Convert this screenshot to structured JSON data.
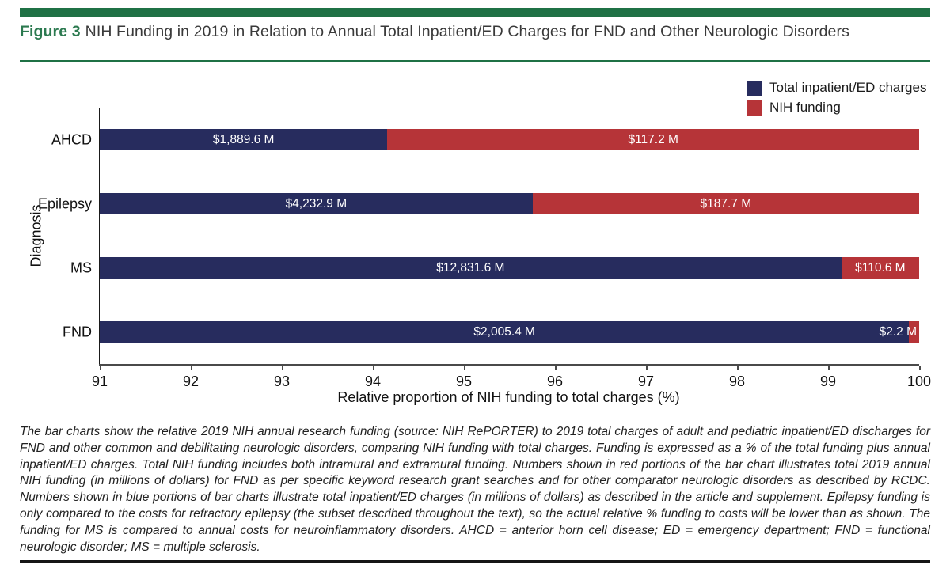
{
  "figure": {
    "label": "Figure 3",
    "title": "NIH Funding in 2019 in Relation to Annual Total Inpatient/ED Charges for FND and Other Neurologic Disorders"
  },
  "colors": {
    "charges": "#272c5e",
    "funding": "#b63438",
    "rule_green": "#1f7145",
    "figure_label_green": "#2c7a50"
  },
  "chart_data": {
    "type": "bar",
    "orientation": "horizontal",
    "stacked": true,
    "title": "",
    "ylabel": "Diagnosis",
    "xlabel": "Relative proportion of NIH funding to total charges (%)",
    "xlim": [
      91,
      100
    ],
    "x_ticks": [
      "91",
      "92",
      "93",
      "94",
      "95",
      "96",
      "97",
      "98",
      "99",
      "100"
    ],
    "categories": [
      "AHCD",
      "Epilepsy",
      "MS",
      "FND"
    ],
    "series": [
      {
        "name": "Total inpatient/ED charges",
        "color_key": "charges",
        "values_millions": [
          1889.6,
          4232.9,
          12831.6,
          2005.4
        ],
        "labels": [
          "$1,889.6 M",
          "$4,232.9 M",
          "$12,831.6 M",
          "$2,005.4 M"
        ]
      },
      {
        "name": "NIH funding",
        "color_key": "funding",
        "values_millions": [
          117.2,
          187.7,
          110.6,
          2.2
        ],
        "labels": [
          "$117.2 M",
          "$187.7 M",
          "$110.6 M",
          "$2.2 M"
        ]
      }
    ],
    "relative_blue_percent": [
      94.16,
      95.75,
      99.15,
      99.89
    ],
    "legend": [
      "Total inpatient/ED charges",
      "NIH funding"
    ],
    "legend_position": "top-right",
    "grid": false
  },
  "caption": "The bar charts show the relative 2019 NIH annual research funding (source: NIH RePORTER) to 2019 total charges of adult and pediatric inpatient/ED discharges for FND and other common and debilitating neurologic disorders, comparing NIH funding with total charges. Funding is expressed as a % of the total funding plus annual inpatient/ED charges. Total NIH funding includes both intramural and extramural funding. Numbers shown in red portions of the bar chart illustrates total 2019 annual NIH funding (in millions of dollars) for FND as per specific keyword research grant searches and for other comparator neurologic disorders as described by RCDC. Numbers shown in blue portions of bar charts illustrate total inpatient/ED charges (in millions of dollars) as described in the article and supplement. Epilepsy funding is only compared to the costs for refractory epilepsy (the subset described throughout the text), so the actual relative % funding to costs will be lower than as shown. The funding for MS is compared to annual costs for neuroinflammatory disorders. AHCD = anterior horn cell disease; ED = emergency department; FND = functional neurologic disorder; MS = multiple sclerosis."
}
